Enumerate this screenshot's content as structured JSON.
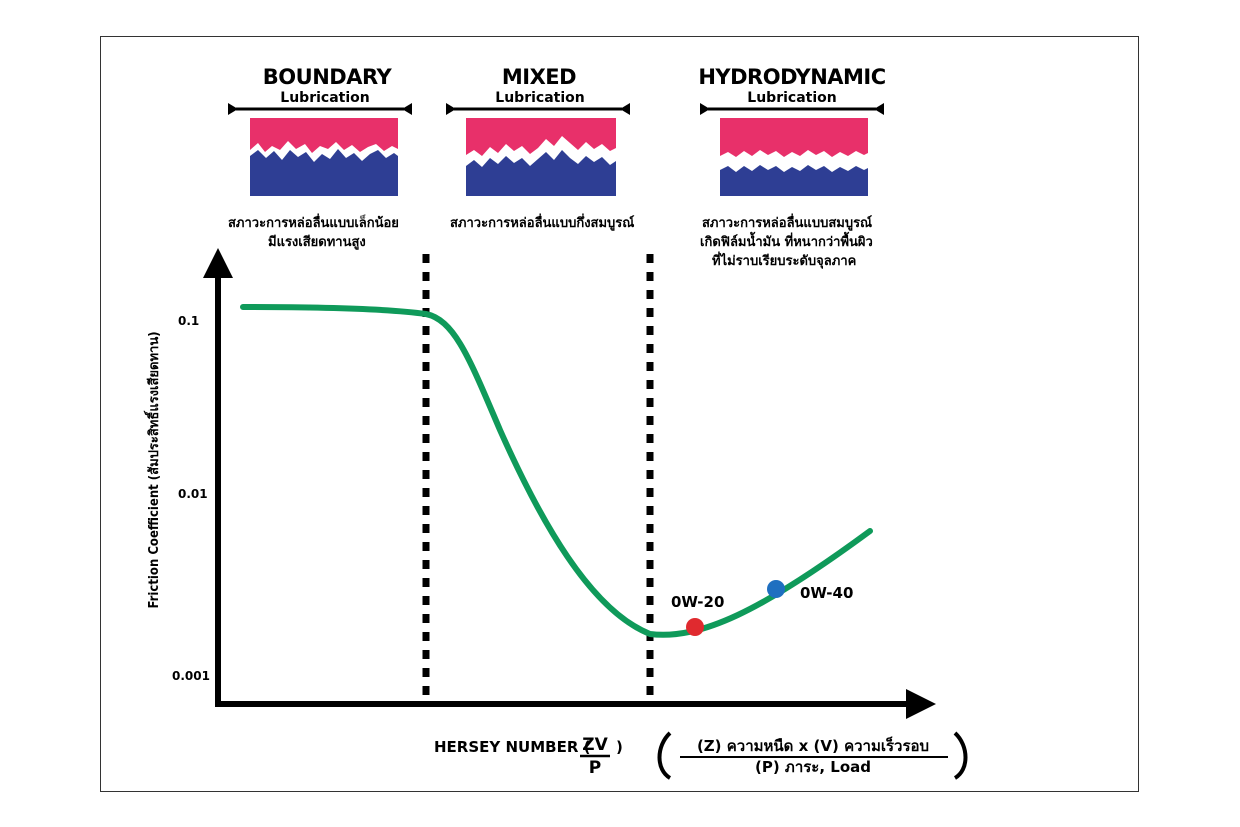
{
  "regimes": [
    {
      "title": "BOUNDARY",
      "subtitle": "Lubrication",
      "desc": [
        "สภาวะการหล่อลื่นแบบเล็กน้อย",
        "มีแรงเสียดทานสูง"
      ]
    },
    {
      "title": "MIXED",
      "subtitle": "Lubrication",
      "desc": [
        "สภาวะการหล่อลื่นแบบกึ่งสมบูรณ์"
      ]
    },
    {
      "title": "HYDRODYNAMIC",
      "subtitle": "Lubrication",
      "desc": [
        "สภาวะการหล่อลื่นแบบสมบูรณ์",
        "เกิดฟิล์มน้ำมัน ที่หนากว่าพื้นผิว",
        "ที่ไม่ราบเรียบระดับจุลภาค"
      ]
    }
  ],
  "axes": {
    "y_label": "Friction Coefficient (สัมประสิทธิ์แรงเสียดทาน)",
    "y_ticks": [
      "0.1",
      "0.01",
      "0.001"
    ],
    "x_label": "HERSEY NUMBER (",
    "x_label_close": ")",
    "x_fraction": {
      "numerator": "ZV",
      "denominator": "P"
    },
    "formula": {
      "numerator": "(Z) ความหนืด x (V) ความเร็วรอบ",
      "denominator": "(P) ภาระ, Load"
    }
  },
  "points": [
    {
      "label": "0W-20",
      "color": "#e02a2f"
    },
    {
      "label": "0W-40",
      "color": "#1f6fc0"
    }
  ],
  "colors": {
    "curve": "#0f9a5a",
    "top_surface": "#e8306a",
    "bottom_surface": "#2e3e94",
    "axis": "#000000"
  }
}
